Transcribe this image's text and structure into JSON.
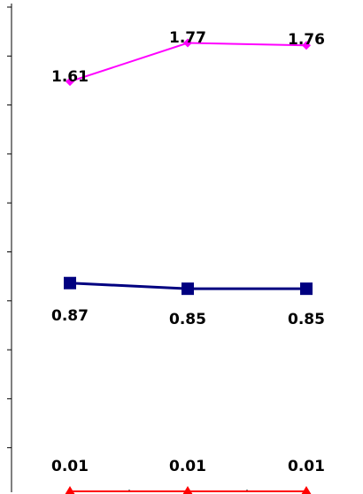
{
  "chart_data": {
    "type": "line",
    "title": "",
    "xlabel": "",
    "ylabel": "",
    "categories": [
      "",
      "",
      ""
    ],
    "grid": false,
    "legend": "none",
    "series": [
      {
        "values": [
          1.61,
          1.77,
          1.76
        ],
        "labels": [
          "1.61",
          "1.77",
          "1.76"
        ],
        "color": "#ff00ff",
        "marker": "diamond"
      },
      {
        "values": [
          0.87,
          0.85,
          0.85
        ],
        "labels": [
          "0.87",
          "0.85",
          "0.85"
        ],
        "color": "#000080",
        "marker": "square"
      },
      {
        "values": [
          0.01,
          0.01,
          0.01
        ],
        "labels": [
          "0.01",
          "0.01",
          "0.01"
        ],
        "color": "#ff0000",
        "marker": "triangle"
      }
    ]
  }
}
